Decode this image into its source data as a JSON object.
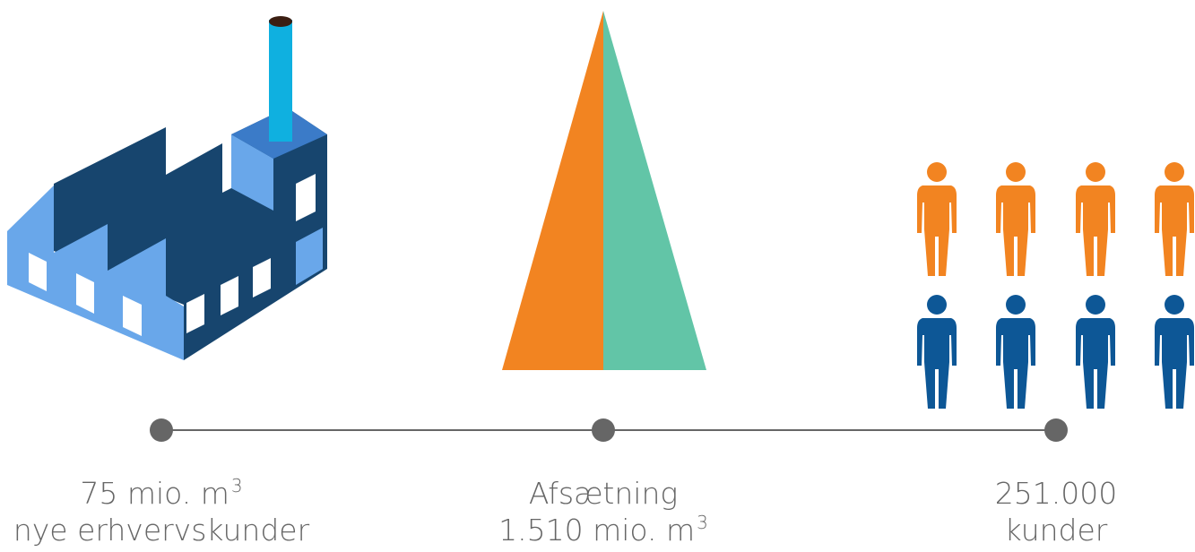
{
  "items": [
    {
      "lines": [
        {
          "text": "75 mio. m",
          "sup": "3"
        },
        {
          "text": "nye erhvervskunder"
        }
      ]
    },
    {
      "lines": [
        {
          "text": "Afsætning"
        },
        {
          "text": "1.510 mio. m",
          "sup": "3"
        }
      ]
    },
    {
      "lines": [
        {
          "text": "251.000"
        },
        {
          "text": "kunder"
        }
      ]
    }
  ]
}
